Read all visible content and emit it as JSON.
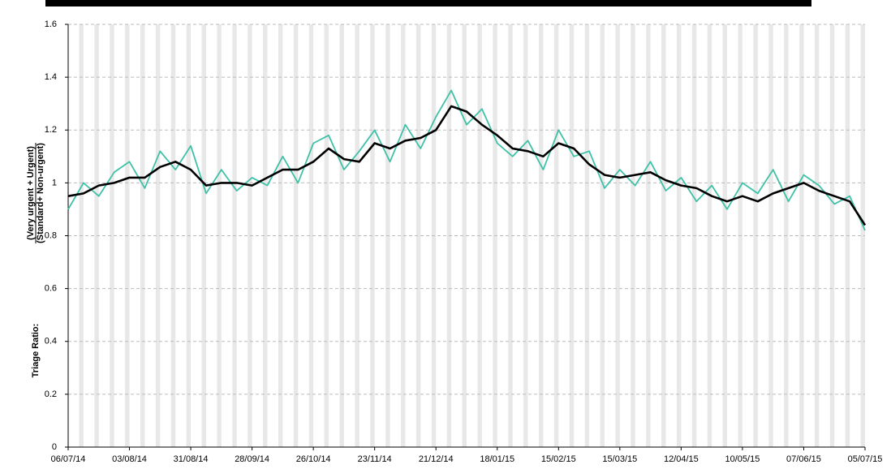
{
  "chart_data": {
    "type": "line",
    "ylabel": {
      "prefix": "Triage Ratio:",
      "numerator": "(Very urgent + Urgent)",
      "denominator": "(Standard+ Non-urgent)"
    },
    "x": [
      "06/07/14",
      "13/07/14",
      "20/07/14",
      "27/07/14",
      "03/08/14",
      "10/08/14",
      "17/08/14",
      "24/08/14",
      "31/08/14",
      "07/09/14",
      "14/09/14",
      "21/09/14",
      "28/09/14",
      "05/10/14",
      "12/10/14",
      "19/10/14",
      "26/10/14",
      "02/11/14",
      "09/11/14",
      "16/11/14",
      "23/11/14",
      "30/11/14",
      "07/12/14",
      "14/12/14",
      "21/12/14",
      "28/12/14",
      "04/01/15",
      "11/01/15",
      "18/01/15",
      "25/01/15",
      "01/02/15",
      "08/02/15",
      "15/02/15",
      "22/02/15",
      "01/03/15",
      "08/03/15",
      "15/03/15",
      "22/03/15",
      "29/03/15",
      "05/04/15",
      "12/04/15",
      "19/04/15",
      "26/04/15",
      "03/05/15",
      "10/05/15",
      "17/05/15",
      "24/05/15",
      "31/05/15",
      "07/06/15",
      "14/06/15",
      "21/06/15",
      "28/06/15",
      "05/07/15"
    ],
    "series": [
      {
        "color": "#3fc1a8",
        "values": [
          0.9,
          1.0,
          0.95,
          1.04,
          1.08,
          0.98,
          1.12,
          1.05,
          1.14,
          0.96,
          1.05,
          0.97,
          1.02,
          0.99,
          1.1,
          1.0,
          1.15,
          1.18,
          1.05,
          1.12,
          1.2,
          1.08,
          1.22,
          1.13,
          1.25,
          1.35,
          1.22,
          1.28,
          1.15,
          1.1,
          1.16,
          1.05,
          1.2,
          1.1,
          1.12,
          0.98,
          1.05,
          0.99,
          1.08,
          0.97,
          1.02,
          0.93,
          0.99,
          0.9,
          1.0,
          0.96,
          1.05,
          0.93,
          1.03,
          0.99,
          0.92,
          0.95,
          0.82
        ]
      },
      {
        "color": "#000000",
        "values": [
          0.95,
          0.96,
          0.99,
          1.0,
          1.02,
          1.02,
          1.06,
          1.08,
          1.05,
          0.99,
          1.0,
          1.0,
          0.99,
          1.02,
          1.05,
          1.05,
          1.08,
          1.13,
          1.09,
          1.08,
          1.15,
          1.13,
          1.16,
          1.17,
          1.2,
          1.29,
          1.27,
          1.22,
          1.18,
          1.13,
          1.12,
          1.1,
          1.15,
          1.13,
          1.07,
          1.03,
          1.02,
          1.03,
          1.04,
          1.01,
          0.99,
          0.98,
          0.95,
          0.93,
          0.95,
          0.93,
          0.96,
          0.98,
          1.0,
          0.97,
          0.95,
          0.93,
          0.84
        ]
      }
    ],
    "xlim": [
      "06/07/14",
      "05/07/15"
    ],
    "xticks": [
      "06/07/14",
      "03/08/14",
      "31/08/14",
      "28/09/14",
      "26/10/14",
      "23/11/14",
      "21/12/14",
      "18/01/15",
      "15/02/15",
      "15/03/15",
      "12/04/15",
      "10/05/15",
      "07/06/15",
      "05/07/15"
    ],
    "ylim": [
      0,
      1.6
    ],
    "yticks": [
      0,
      0.2,
      0.4,
      0.6,
      0.8,
      1,
      1.2,
      1.4,
      1.6
    ],
    "grid": true
  }
}
